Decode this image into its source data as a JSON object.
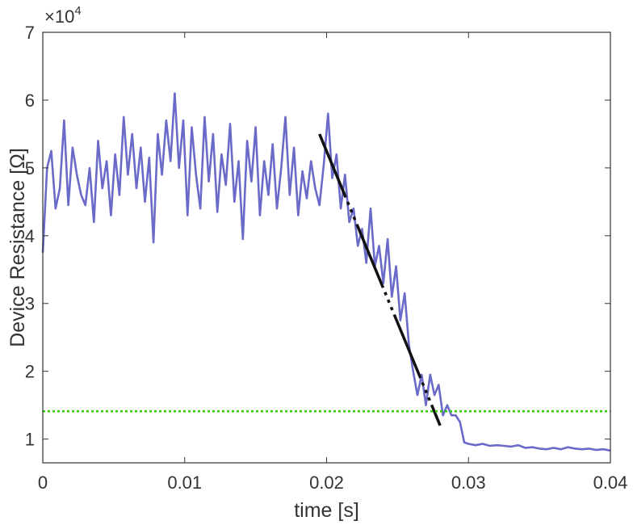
{
  "chart_data": {
    "type": "line",
    "xlabel": "time [s]",
    "ylabel": "Device Resistance [Ω]",
    "xlim": [
      0,
      0.04
    ],
    "ylim": [
      6500,
      70000
    ],
    "x_ticks": [
      "0",
      "0.01",
      "0.02",
      "0.03",
      "0.04"
    ],
    "x_tick_values": [
      0,
      0.01,
      0.02,
      0.03,
      0.04
    ],
    "y_ticks": [
      "1",
      "2",
      "3",
      "4",
      "5",
      "6",
      "7"
    ],
    "y_tick_values": [
      10000,
      20000,
      30000,
      40000,
      50000,
      60000,
      70000
    ],
    "y_multiplier": {
      "base": "×10",
      "exponent": "4"
    },
    "grid": false,
    "box": true,
    "colors": {
      "measured": "#6a6ac8",
      "fit": "#111111",
      "threshold": "#33cc11",
      "axis": "#333333"
    },
    "series": [
      {
        "kind": "measured",
        "x": [
          0,
          0.0003,
          0.0006,
          0.0009,
          0.0012,
          0.0015,
          0.0018,
          0.0021,
          0.0024,
          0.0027,
          0.003,
          0.0033,
          0.0036,
          0.0039,
          0.0042,
          0.0045,
          0.0048,
          0.0051,
          0.0054,
          0.0057,
          0.006,
          0.0063,
          0.0066,
          0.0069,
          0.0072,
          0.0075,
          0.0078,
          0.0081,
          0.0084,
          0.0087,
          0.009,
          0.0093,
          0.0096,
          0.0099,
          0.0102,
          0.0105,
          0.0108,
          0.0111,
          0.0114,
          0.0117,
          0.012,
          0.0123,
          0.0126,
          0.0129,
          0.0132,
          0.0135,
          0.0138,
          0.0141,
          0.0144,
          0.0147,
          0.015,
          0.0153,
          0.0156,
          0.0159,
          0.0162,
          0.0165,
          0.0168,
          0.0171,
          0.0174,
          0.0177,
          0.018,
          0.0183,
          0.0186,
          0.0189,
          0.0192,
          0.0195,
          0.0198,
          0.0201,
          0.0204,
          0.0207,
          0.021,
          0.0213,
          0.0216,
          0.0219,
          0.0222,
          0.0225,
          0.0228,
          0.0231,
          0.0234,
          0.0237,
          0.024,
          0.0243,
          0.0246,
          0.0249,
          0.0252,
          0.0255,
          0.0258,
          0.0261,
          0.0264,
          0.0267,
          0.027,
          0.0273,
          0.0276,
          0.0279,
          0.0282,
          0.0285,
          0.0288,
          0.0291,
          0.0294,
          0.0297,
          0.03,
          0.0305,
          0.031,
          0.0315,
          0.032,
          0.0325,
          0.033,
          0.0335,
          0.034,
          0.0345,
          0.035,
          0.0355,
          0.036,
          0.0365,
          0.037,
          0.0375,
          0.038,
          0.0385,
          0.039,
          0.0395,
          0.04
        ],
        "y": [
          37500,
          50000,
          52500,
          44000,
          47000,
          57000,
          44500,
          53000,
          49000,
          46000,
          44500,
          50000,
          42000,
          54000,
          47000,
          51000,
          43000,
          52000,
          46000,
          57500,
          49000,
          55000,
          47000,
          53000,
          45000,
          51500,
          39000,
          55000,
          49000,
          57000,
          51000,
          61000,
          50000,
          57000,
          43000,
          56000,
          49000,
          44000,
          57500,
          48000,
          55000,
          43500,
          52000,
          47500,
          56500,
          45000,
          51000,
          39500,
          54000,
          48000,
          56000,
          43000,
          51000,
          46000,
          53500,
          44000,
          50000,
          57500,
          46000,
          53000,
          43000,
          49500,
          45500,
          51000,
          47000,
          44500,
          50500,
          58000,
          48500,
          52000,
          44000,
          49000,
          42000,
          44000,
          38500,
          41000,
          36000,
          44000,
          35500,
          38500,
          33000,
          39500,
          31000,
          35500,
          27500,
          31500,
          24000,
          20000,
          16500,
          19500,
          15000,
          19500,
          16500,
          18000,
          13500,
          15000,
          13500,
          13500,
          12500,
          9500,
          9300,
          9100,
          9300,
          9000,
          9100,
          9000,
          8900,
          9100,
          8700,
          8800,
          8600,
          8500,
          8700,
          8500,
          8800,
          8600,
          8500,
          8600,
          8400,
          8500,
          8300
        ]
      },
      {
        "kind": "fit",
        "x": [
          0.0195,
          0.028
        ],
        "y": [
          55000,
          12000
        ]
      },
      {
        "kind": "threshold",
        "x": [
          0,
          0.04
        ],
        "y": [
          14100,
          14100
        ]
      }
    ]
  }
}
